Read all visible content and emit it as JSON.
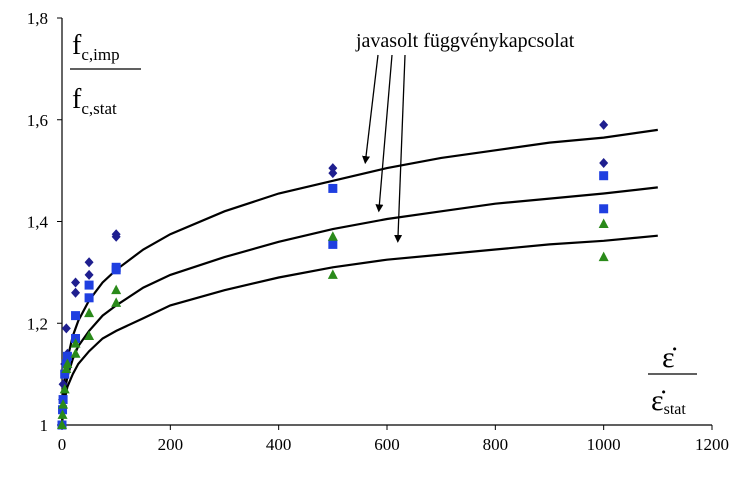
{
  "chart_data": {
    "type": "scatter",
    "title": "",
    "xlim": [
      0,
      1200
    ],
    "ylim": [
      1,
      1.8
    ],
    "x_ticks": [
      "0",
      "200",
      "400",
      "600",
      "800",
      "1000",
      "1200"
    ],
    "y_ticks": [
      "1",
      "1,2",
      "1,4",
      "1,6",
      "1,8"
    ],
    "grid": false,
    "legend": "none",
    "ylabel": {
      "numerator": "f",
      "numerator_sub": "c,imp",
      "denominator": "f",
      "denominator_sub": "c,stat"
    },
    "xlabel": {
      "numerator": "ε̇",
      "denominator": "ε̇",
      "denominator_sub": "stat"
    },
    "annotation": "javasolt függvénykapcsolat",
    "colors": {
      "diamonds": "#1f1f8f",
      "squares": "#1f3fe0",
      "triangles": "#2a8a1a",
      "curves": "#000000"
    },
    "scatter_series": [
      {
        "marker": "diamond",
        "points": [
          [
            0,
            1.0
          ],
          [
            1,
            1.05
          ],
          [
            2,
            1.08
          ],
          [
            5,
            1.12
          ],
          [
            8,
            1.19
          ],
          [
            10,
            1.14
          ],
          [
            25,
            1.26
          ],
          [
            25,
            1.28
          ],
          [
            50,
            1.295
          ],
          [
            50,
            1.32
          ],
          [
            100,
            1.37
          ],
          [
            100,
            1.375
          ],
          [
            500,
            1.495
          ],
          [
            500,
            1.505
          ],
          [
            1000,
            1.515
          ],
          [
            1000,
            1.59
          ]
        ]
      },
      {
        "marker": "square",
        "points": [
          [
            0,
            1.0
          ],
          [
            1,
            1.03
          ],
          [
            2,
            1.05
          ],
          [
            5,
            1.1
          ],
          [
            8,
            1.12
          ],
          [
            10,
            1.135
          ],
          [
            25,
            1.17
          ],
          [
            25,
            1.215
          ],
          [
            50,
            1.25
          ],
          [
            50,
            1.275
          ],
          [
            100,
            1.305
          ],
          [
            100,
            1.31
          ],
          [
            500,
            1.355
          ],
          [
            500,
            1.465
          ],
          [
            1000,
            1.425
          ],
          [
            1000,
            1.49
          ]
        ]
      },
      {
        "marker": "triangle",
        "points": [
          [
            0,
            1.0
          ],
          [
            1,
            1.02
          ],
          [
            2,
            1.04
          ],
          [
            5,
            1.07
          ],
          [
            8,
            1.11
          ],
          [
            10,
            1.12
          ],
          [
            25,
            1.14
          ],
          [
            25,
            1.16
          ],
          [
            50,
            1.175
          ],
          [
            50,
            1.22
          ],
          [
            100,
            1.24
          ],
          [
            100,
            1.265
          ],
          [
            500,
            1.295
          ],
          [
            500,
            1.37
          ],
          [
            1000,
            1.33
          ],
          [
            1000,
            1.395
          ]
        ]
      }
    ],
    "curves": [
      {
        "points": [
          [
            0,
            1.0
          ],
          [
            2,
            1.05
          ],
          [
            5,
            1.09
          ],
          [
            10,
            1.13
          ],
          [
            20,
            1.175
          ],
          [
            30,
            1.205
          ],
          [
            50,
            1.245
          ],
          [
            75,
            1.28
          ],
          [
            100,
            1.305
          ],
          [
            150,
            1.345
          ],
          [
            200,
            1.375
          ],
          [
            300,
            1.42
          ],
          [
            400,
            1.455
          ],
          [
            500,
            1.48
          ],
          [
            600,
            1.505
          ],
          [
            700,
            1.525
          ],
          [
            800,
            1.54
          ],
          [
            900,
            1.555
          ],
          [
            1000,
            1.565
          ],
          [
            1100,
            1.58
          ]
        ]
      },
      {
        "points": [
          [
            0,
            1.0
          ],
          [
            2,
            1.035
          ],
          [
            5,
            1.065
          ],
          [
            10,
            1.095
          ],
          [
            20,
            1.13
          ],
          [
            30,
            1.155
          ],
          [
            50,
            1.185
          ],
          [
            75,
            1.215
          ],
          [
            100,
            1.235
          ],
          [
            150,
            1.27
          ],
          [
            200,
            1.295
          ],
          [
            300,
            1.33
          ],
          [
            400,
            1.36
          ],
          [
            500,
            1.385
          ],
          [
            600,
            1.405
          ],
          [
            700,
            1.42
          ],
          [
            800,
            1.435
          ],
          [
            900,
            1.445
          ],
          [
            1000,
            1.455
          ],
          [
            1100,
            1.467
          ]
        ]
      },
      {
        "points": [
          [
            0,
            1.0
          ],
          [
            2,
            1.025
          ],
          [
            5,
            1.05
          ],
          [
            10,
            1.075
          ],
          [
            20,
            1.1
          ],
          [
            30,
            1.12
          ],
          [
            50,
            1.145
          ],
          [
            75,
            1.17
          ],
          [
            100,
            1.185
          ],
          [
            150,
            1.21
          ],
          [
            200,
            1.235
          ],
          [
            300,
            1.265
          ],
          [
            400,
            1.29
          ],
          [
            500,
            1.31
          ],
          [
            600,
            1.325
          ],
          [
            700,
            1.335
          ],
          [
            800,
            1.345
          ],
          [
            900,
            1.355
          ],
          [
            1000,
            1.362
          ],
          [
            1100,
            1.372
          ]
        ]
      }
    ],
    "annotation_arrow_targets": [
      [
        560,
        1.505
      ],
      [
        585,
        1.41
      ],
      [
        620,
        1.35
      ]
    ]
  }
}
